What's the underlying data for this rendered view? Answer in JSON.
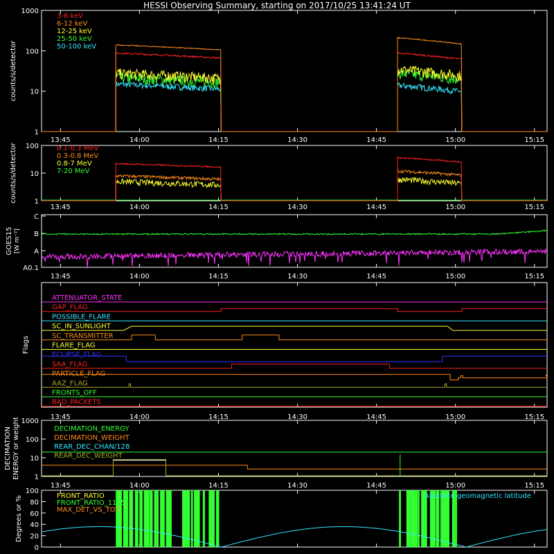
{
  "title": "HESSI Observing Summary, starting on 2017/10/25 13:41:24 UT",
  "time_ticks": [
    "13:45",
    "14:00",
    "14:15",
    "14:30",
    "14:45",
    "15:00",
    "15:15"
  ],
  "chart_data": [
    {
      "type": "line",
      "ylabel": "counts/s/detector",
      "log_y": true,
      "ylim": [
        1,
        1000
      ],
      "yticks": [
        "1",
        "10",
        "100",
        "1000"
      ],
      "series": [
        {
          "name": "3-6 keV",
          "color": "#ff2020",
          "values": [
            85,
            85
          ]
        },
        {
          "name": "6-12 keV",
          "color": "#ff8c1a",
          "values": [
            140,
            210
          ]
        },
        {
          "name": "12-25 keV",
          "color": "#ffff33",
          "values": [
            28,
            35
          ]
        },
        {
          "name": "25-50 keV",
          "color": "#33ff33",
          "values": [
            22,
            25
          ]
        },
        {
          "name": "50-100 keV",
          "color": "#33e6ff",
          "values": [
            12,
            12
          ]
        }
      ]
    },
    {
      "type": "line",
      "ylabel": "counts/s/detector",
      "log_y": true,
      "ylim": [
        1,
        100
      ],
      "yticks": [
        "1",
        "10",
        "100"
      ],
      "series": [
        {
          "name": "0.1-0.3 MeV",
          "color": "#ff2020",
          "values": [
            20,
            35
          ]
        },
        {
          "name": "0.3-0.8 MeV",
          "color": "#ff8c1a",
          "values": [
            9,
            14
          ]
        },
        {
          "name": "0.8-7 MeV",
          "color": "#ffff33",
          "values": [
            6,
            8
          ]
        },
        {
          "name": "7-20 MeV",
          "color": "#33ff33",
          "values": [
            1,
            1
          ]
        }
      ]
    },
    {
      "type": "line",
      "ylabel": "GOES15",
      "ylabel2": "[W m⁻²]",
      "yticks": [
        "A0.1",
        "A",
        "B",
        "C"
      ],
      "series": [
        {
          "color": "#33ff33",
          "values": [
            1.7,
            1.8
          ]
        },
        {
          "color": "#ff33ff",
          "values": [
            0.65,
            0.8
          ]
        }
      ]
    },
    {
      "type": "line",
      "ylabel": "Flags",
      "flags": [
        {
          "name": "ATTENUATOR_STATE",
          "color": "#ff33ff"
        },
        {
          "name": "GAP_FLAG",
          "color": "#ff2020"
        },
        {
          "name": "POSSIBLE_FLARE",
          "color": "#33e6ff"
        },
        {
          "name": "SC_IN_SUNLIGHT",
          "color": "#ffff33"
        },
        {
          "name": "SC_TRANSMITTER",
          "color": "#ff8c1a"
        },
        {
          "name": "FLARE_FLAG",
          "color": "#ffff33"
        },
        {
          "name": "ECLIPSE_FLAG",
          "color": "#3333ff"
        },
        {
          "name": "SAA_FLAG",
          "color": "#ff2020"
        },
        {
          "name": "PARTICLE_FLAG",
          "color": "#ff8c1a"
        },
        {
          "name": "AAZ_FLAG",
          "color": "#aaaa22"
        },
        {
          "name": "FRONTS_OFF",
          "color": "#33ff33"
        },
        {
          "name": "BAD_PACKETS",
          "color": "#ff2020"
        }
      ]
    },
    {
      "type": "line",
      "ylabel": "DECIMATION",
      "ylabel2": "ENERGY or weight",
      "log_y": true,
      "ylim": [
        1,
        1000
      ],
      "yticks": [
        "1",
        "10",
        "100",
        "1000"
      ],
      "series": [
        {
          "name": "DECIMATION_ENERGY",
          "color": "#33ff33",
          "values": [
            20,
            20
          ]
        },
        {
          "name": "DECIMATION_WEIGHT",
          "color": "#ff8c1a",
          "values": [
            4,
            2.5
          ]
        },
        {
          "name": "REAR_DEC_CHAN/128",
          "color": "#33e6ff",
          "values": []
        },
        {
          "name": "REAR_DEC_WEIGHT",
          "color": "#aaaa22",
          "values": [
            1,
            1
          ]
        }
      ]
    },
    {
      "type": "line",
      "ylabel": "Degrees or %",
      "ylim": [
        0,
        100
      ],
      "yticks": [
        "0",
        "20",
        "40",
        "60",
        "80",
        "100"
      ],
      "annotation": "Absolute geomagnetic latitude",
      "series": [
        {
          "name": "FRONT_RATIO",
          "color": "#ffff33",
          "values": []
        },
        {
          "name": "FRONT_RATIO_1125",
          "color": "#33ff33",
          "values": [
            100,
            100
          ]
        },
        {
          "name": "MAX_DET_VS_TOT",
          "color": "#ff8c1a",
          "values": []
        },
        {
          "color": "#33e6ff",
          "values": [
            38,
            0,
            35,
            0,
            32
          ]
        }
      ]
    }
  ]
}
